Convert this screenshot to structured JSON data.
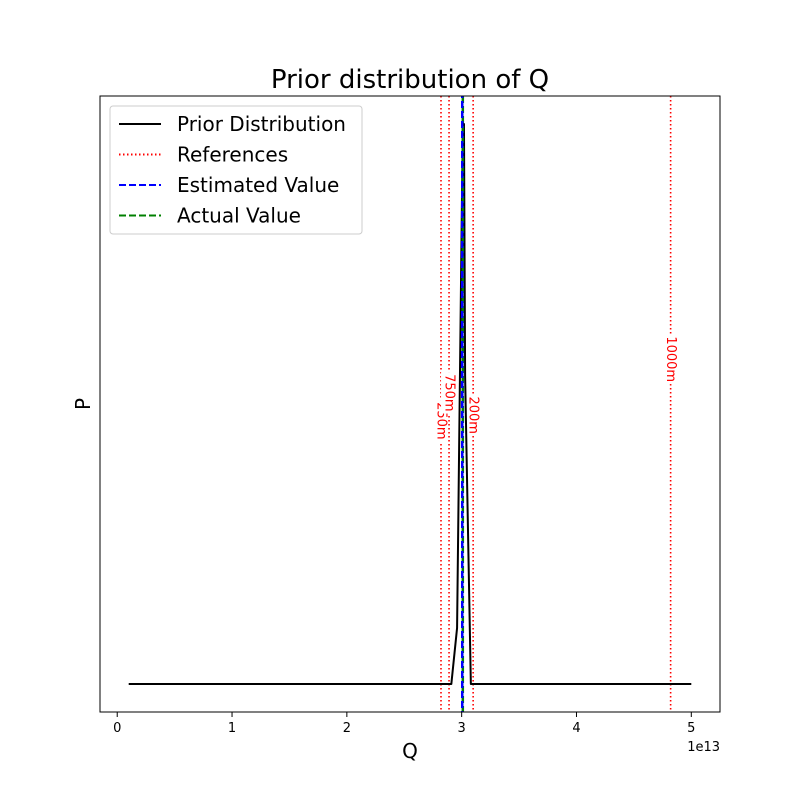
{
  "chart_data": {
    "type": "line",
    "title": "Prior distribution of Q",
    "xlabel": "Q",
    "ylabel": "P",
    "x_offset_label": "1e13",
    "x_scale": 10000000000000.0,
    "xlim": [
      -0.15,
      5.25
    ],
    "ylim": [
      -0.05,
      1.05
    ],
    "xticks": [
      0,
      1,
      2,
      3,
      4,
      5
    ],
    "yticks_shown": false,
    "grid": false,
    "legend": {
      "placement": "top-left",
      "entries": [
        {
          "label": "Prior Distribution",
          "color": "#000000",
          "style": "solid"
        },
        {
          "label": "References",
          "color": "#ff0000",
          "style": "dotted"
        },
        {
          "label": "Estimated Value",
          "color": "#0000ff",
          "style": "dashed"
        },
        {
          "label": "Actual Value",
          "color": "#008000",
          "style": "dashed"
        }
      ]
    },
    "prior_series": {
      "name": "Prior Distribution",
      "color": "#000000",
      "x": [
        0.1,
        2.91,
        2.96,
        3.01,
        3.02,
        3.03,
        3.08,
        3.1,
        4.9,
        5.0
      ],
      "y": [
        0,
        0,
        0.1,
        1.0,
        1.0,
        0.55,
        0,
        0,
        0,
        0
      ]
    },
    "references": [
      {
        "x": 2.82,
        "label": "250m",
        "label_y": 0.47
      },
      {
        "x": 2.89,
        "label": "750m",
        "label_y": 0.52
      },
      {
        "x": 3.1,
        "label": "200m",
        "label_y": 0.48
      },
      {
        "x": 4.82,
        "label": "1000m",
        "label_y": 0.58
      }
    ],
    "estimated_value": {
      "x": 3.005,
      "color": "#0000ff"
    },
    "actual_value": {
      "x": 3.01,
      "color": "#008000"
    }
  }
}
